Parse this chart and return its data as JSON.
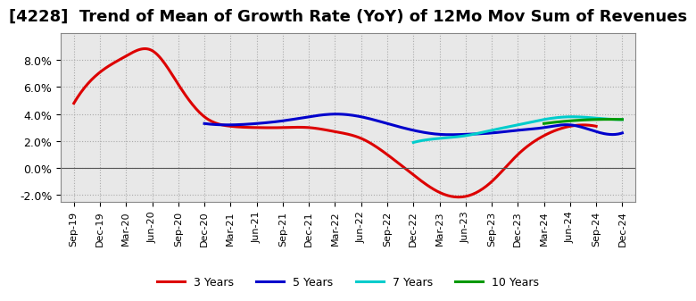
{
  "title": "[4228]  Trend of Mean of Growth Rate (YoY) of 12Mo Mov Sum of Revenues",
  "title_fontsize": 13,
  "background_color": "#ffffff",
  "plot_bg_color": "#e8e8e8",
  "x_labels": [
    "Sep-19",
    "Dec-19",
    "Mar-20",
    "Jun-20",
    "Sep-20",
    "Dec-20",
    "Mar-21",
    "Jun-21",
    "Sep-21",
    "Dec-21",
    "Mar-22",
    "Jun-22",
    "Sep-22",
    "Dec-22",
    "Mar-23",
    "Jun-23",
    "Sep-23",
    "Dec-23",
    "Mar-24",
    "Jun-24",
    "Sep-24",
    "Dec-24"
  ],
  "series": {
    "3 Years": {
      "color": "#dd0000",
      "data_x": [
        0,
        1,
        2,
        3,
        4,
        5,
        6,
        7,
        8,
        9,
        10,
        11,
        12,
        13,
        14,
        15,
        16,
        17,
        18,
        19,
        20
      ],
      "data_y": [
        0.048,
        0.071,
        0.083,
        0.087,
        0.062,
        0.038,
        0.031,
        0.03,
        0.03,
        0.03,
        0.027,
        0.022,
        0.01,
        -0.005,
        -0.018,
        -0.021,
        -0.01,
        0.01,
        0.024,
        0.031,
        0.031
      ]
    },
    "5 Years": {
      "color": "#0000cc",
      "data_x": [
        5,
        6,
        7,
        8,
        9,
        10,
        11,
        12,
        13,
        14,
        15,
        16,
        17,
        18,
        19,
        20,
        21
      ],
      "data_y": [
        0.033,
        0.032,
        0.033,
        0.035,
        0.038,
        0.04,
        0.038,
        0.033,
        0.028,
        0.025,
        0.025,
        0.026,
        0.028,
        0.03,
        0.032,
        0.027,
        0.026
      ]
    },
    "7 Years": {
      "color": "#00cccc",
      "data_x": [
        13,
        14,
        15,
        16,
        17,
        18,
        19,
        20,
        21
      ],
      "data_y": [
        0.019,
        0.022,
        0.024,
        0.028,
        0.032,
        0.036,
        0.038,
        0.037,
        0.036
      ]
    },
    "10 Years": {
      "color": "#009900",
      "data_x": [
        18,
        19,
        20,
        21
      ],
      "data_y": [
        0.033,
        0.035,
        0.036,
        0.036
      ]
    }
  },
  "ylim": [
    -0.025,
    0.1
  ],
  "yticks": [
    -0.02,
    0.0,
    0.02,
    0.04,
    0.06,
    0.08
  ],
  "grid_color": "#aaaaaa",
  "legend_pos": "lower center",
  "legend_ncol": 4
}
